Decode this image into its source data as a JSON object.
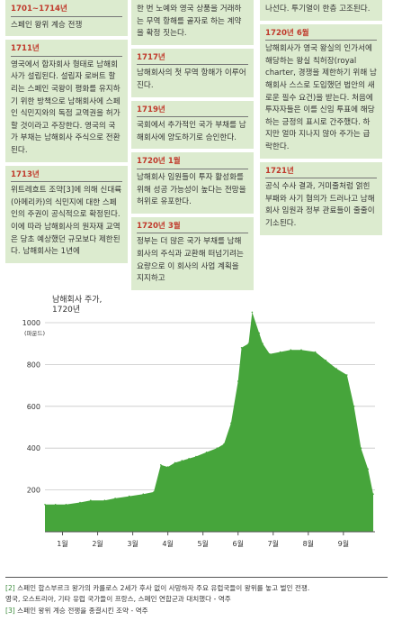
{
  "timeline": {
    "col1": [
      {
        "year": "1701~1714년",
        "text": " 스페인 왕위 계승 전쟁"
      },
      {
        "year": "1711년",
        "text": " 영국에서 합자회사 형태로 남해회사가 설립된다. 설립자 로버트 할리는 스페인 국왕이 평화를 유지하기 위한 방책으로 남해회사에 스페인 식민지와의 독점 교역권을 허가할 것이라고 주장한다. 영국의 국가 부채는 남해회사 주식으로 전환된다."
      },
      {
        "year": "1713년",
        "text": " 위트레흐트 조약[3]에 의해 신대륙(아메리카)의 식민지에 대한 스페인의 주권이 공식적으로 확정된다. 이에 따라 남해회사의 원자재 교역은 당초 예상했던 규모보다 제한된다. 남해회사는 1년에"
      }
    ],
    "col2": [
      {
        "year": "",
        "text": "한 번 노예와 영국 상품을 거래하는 무역 항해를 골자로 하는 계약을 확정 짓는다."
      },
      {
        "year": "1717년",
        "text": " 남해회사의 첫 무역 항해가 이루어진다."
      },
      {
        "year": "1719년",
        "text": " 국회에서 추가적인 국가 부채를 남해회사에 양도하기로 승인한다."
      },
      {
        "year": "1720년 1월",
        "text": " 남해회사 임원들이 투자 활성화를 위해 성공 가능성이 높다는 전망을 허위로 유포한다."
      },
      {
        "year": "1720년 3월",
        "text": " 정부는 더 많은 국가 부채를 남해회사의 주식과 교환해 떠넘기려는 요량으로 이 회사의 사업 계획을 지지하고"
      }
    ],
    "col3": [
      {
        "year": "",
        "text": "나선다. 투기열이 한층 고조된다."
      },
      {
        "year": "1720년 6월",
        "text": " 남해회사가 영국 왕실의 인가서에 해당하는 왕실 칙허장(royal charter, 경쟁을 제한하기 위해 남해회사 스스로 도입했던 법안의 새로운 필수 요건)을 받는다. 처음에 투자자들은 이를 신임 투표에 해당하는 긍정의 표시로 간주했다. 하지만 얼마 지나지 않아 주가는 급락한다."
      },
      {
        "year": "1721년",
        "text": " 공식 수사 결과, 거미줄처럼 얽힌 부패와 사기 혐의가 드러나고 남해회사 임원과 정부 관료들이 줄줄이 기소된다."
      }
    ]
  },
  "chart_data": {
    "type": "area",
    "title": "남해회사 주가,\n1720년",
    "ylabel": "(파운드)",
    "xlabel": "",
    "ylim": [
      0,
      1000
    ],
    "yticks": [
      200,
      400,
      600,
      800,
      1000
    ],
    "categories": [
      "1월",
      "2월",
      "3월",
      "4월",
      "5월",
      "6월",
      "7월",
      "8월",
      "9월"
    ],
    "x": [
      0,
      0.3,
      0.6,
      1.0,
      1.3,
      1.7,
      2.0,
      2.4,
      2.8,
      3.1,
      3.3,
      3.5,
      3.7,
      3.9,
      4.1,
      4.3,
      4.6,
      4.9,
      5.1,
      5.3,
      5.5,
      5.6,
      5.8,
      5.9,
      6.1,
      6.2,
      6.4,
      6.7,
      7.0,
      7.3,
      7.7,
      8.0,
      8.3,
      8.6,
      8.8,
      9.0,
      9.2,
      9.35
    ],
    "values": [
      130,
      130,
      130,
      140,
      150,
      150,
      160,
      170,
      180,
      190,
      320,
      310,
      330,
      340,
      350,
      360,
      380,
      400,
      420,
      520,
      720,
      880,
      900,
      1050,
      950,
      900,
      850,
      860,
      870,
      870,
      860,
      820,
      780,
      750,
      600,
      400,
      300,
      180
    ],
    "series_color": "#46a53b",
    "grid": true
  },
  "footnotes": [
    {
      "num": "[2]",
      "text": " 스페인 합스부르크 왕가의 카를로스 2세가 후사 없이 사망하자 주요 유럽국들이 왕위를 놓고 벌인 전쟁.\n영국, 오스트리아, 기타 유럽 국가들이 프랑스, 스페인 연합군과 대치했다 - 역주"
    },
    {
      "num": "[3]",
      "text": " 스페인 왕위 계승 전쟁을 종결시킨 조약 - 역주"
    }
  ]
}
